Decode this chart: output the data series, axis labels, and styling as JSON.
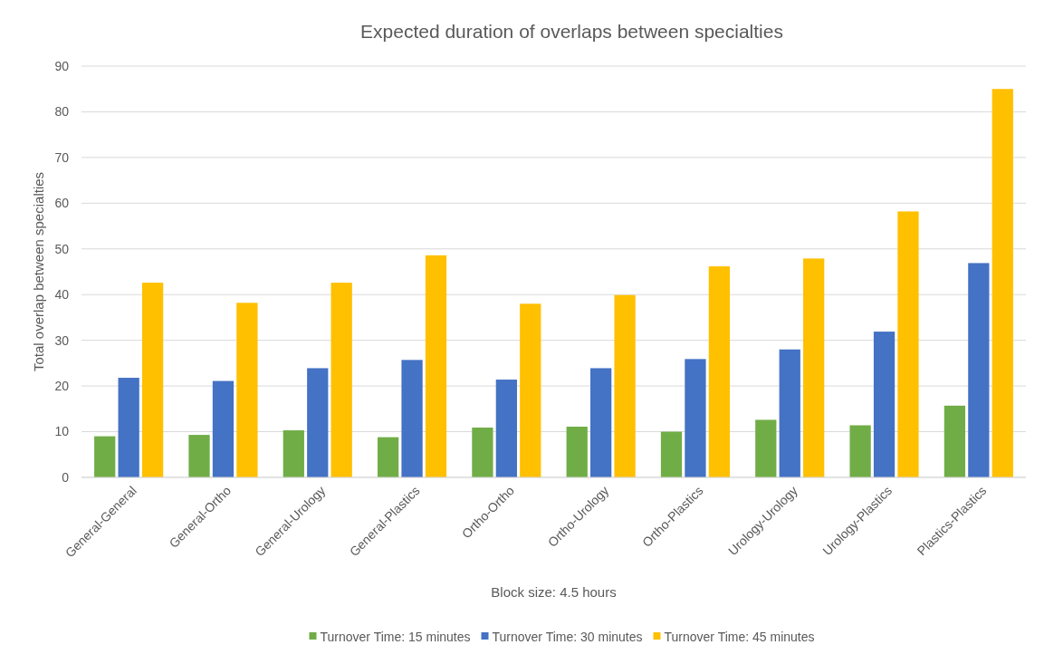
{
  "chart_data": {
    "type": "bar",
    "title": "Expected duration of overlaps between specialties",
    "xlabel": "Block size: 4.5 hours",
    "ylabel": "Total overlap between specialties",
    "categories": [
      "General-General",
      "General-Ortho",
      "General-Urology",
      "General-Plastics",
      "Ortho-Ortho",
      "Ortho-Urology",
      "Ortho-Plastics",
      "Urology-Urology",
      "Urology-Plastics",
      "Plastics-Plastics"
    ],
    "series": [
      {
        "name": "Turnover Time: 15 minutes",
        "color": "#70ad47",
        "values": [
          9.0,
          9.3,
          10.3,
          8.8,
          10.9,
          11.1,
          10.0,
          12.6,
          11.4,
          15.7
        ]
      },
      {
        "name": "Turnover Time: 30 minutes",
        "color": "#4472c4",
        "values": [
          21.8,
          21.1,
          23.9,
          25.7,
          21.4,
          23.9,
          25.9,
          28.0,
          31.9,
          46.9
        ]
      },
      {
        "name": "Turnover Time: 45 minutes",
        "color": "#ffc000",
        "values": [
          42.6,
          38.2,
          42.6,
          48.6,
          38.0,
          39.9,
          46.2,
          47.9,
          58.2,
          85.0
        ]
      }
    ],
    "ylim": [
      0,
      90
    ],
    "yticks": [
      0,
      10,
      20,
      30,
      40,
      50,
      60,
      70,
      80,
      90
    ],
    "grid": "y",
    "legend": "bottom"
  }
}
